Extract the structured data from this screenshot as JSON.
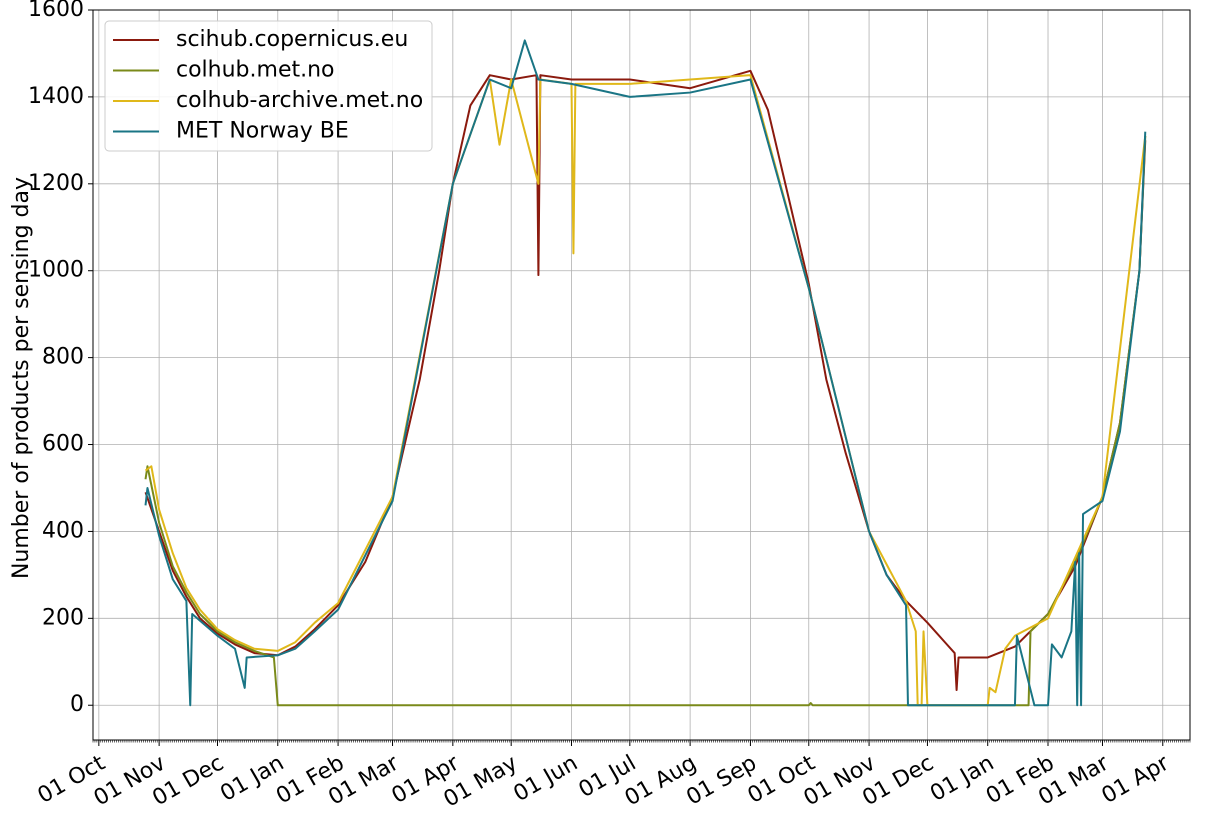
{
  "chart_data": {
    "type": "line",
    "ylabel": "Number of products per sensing day",
    "xlabel": "",
    "ylim": [
      -80,
      1600
    ],
    "yticks": [
      0,
      200,
      400,
      600,
      800,
      1000,
      1200,
      1400,
      1600
    ],
    "xlim": [
      "2020-09-28",
      "2022-04-15"
    ],
    "xticks": [
      {
        "date": "2020-10-01",
        "label": "01 Oct"
      },
      {
        "date": "2020-11-01",
        "label": "01 Nov"
      },
      {
        "date": "2020-12-01",
        "label": "01 Dec"
      },
      {
        "date": "2021-01-01",
        "label": "01 Jan"
      },
      {
        "date": "2021-02-01",
        "label": "01 Feb"
      },
      {
        "date": "2021-03-01",
        "label": "01 Mar"
      },
      {
        "date": "2021-04-01",
        "label": "01 Apr"
      },
      {
        "date": "2021-05-01",
        "label": "01 May"
      },
      {
        "date": "2021-06-01",
        "label": "01 Jun"
      },
      {
        "date": "2021-07-01",
        "label": "01 Jul"
      },
      {
        "date": "2021-08-01",
        "label": "01 Aug"
      },
      {
        "date": "2021-09-01",
        "label": "01 Sep"
      },
      {
        "date": "2021-10-01",
        "label": "01 Oct"
      },
      {
        "date": "2021-11-01",
        "label": "01 Nov"
      },
      {
        "date": "2021-12-01",
        "label": "01 Dec"
      },
      {
        "date": "2022-01-01",
        "label": "01 Jan"
      },
      {
        "date": "2022-02-01",
        "label": "01 Feb"
      },
      {
        "date": "2022-03-01",
        "label": "01 Mar"
      },
      {
        "date": "2022-04-01",
        "label": "01 Apr"
      }
    ],
    "grid": true,
    "legend_position": "top-left",
    "series": [
      {
        "name": "scihub.copernicus.eu",
        "color": "#8b1a0e",
        "points": [
          [
            "2020-10-25",
            490
          ],
          [
            "2020-11-01",
            400
          ],
          [
            "2020-11-08",
            310
          ],
          [
            "2020-11-15",
            250
          ],
          [
            "2020-11-22",
            200
          ],
          [
            "2020-12-01",
            165
          ],
          [
            "2020-12-10",
            140
          ],
          [
            "2020-12-20",
            120
          ],
          [
            "2021-01-01",
            115
          ],
          [
            "2021-01-10",
            135
          ],
          [
            "2021-01-20",
            175
          ],
          [
            "2021-02-01",
            230
          ],
          [
            "2021-02-15",
            330
          ],
          [
            "2021-03-01",
            480
          ],
          [
            "2021-03-15",
            750
          ],
          [
            "2021-03-25",
            1000
          ],
          [
            "2021-04-01",
            1200
          ],
          [
            "2021-04-10",
            1380
          ],
          [
            "2021-04-20",
            1450
          ],
          [
            "2021-05-01",
            1440
          ],
          [
            "2021-05-14",
            1450
          ],
          [
            "2021-05-15",
            990
          ],
          [
            "2021-05-16",
            1450
          ],
          [
            "2021-06-01",
            1440
          ],
          [
            "2021-07-01",
            1440
          ],
          [
            "2021-08-01",
            1420
          ],
          [
            "2021-09-01",
            1460
          ],
          [
            "2021-09-10",
            1370
          ],
          [
            "2021-09-20",
            1180
          ],
          [
            "2021-10-01",
            970
          ],
          [
            "2021-10-10",
            750
          ],
          [
            "2021-10-20",
            580
          ],
          [
            "2021-11-01",
            400
          ],
          [
            "2021-11-10",
            300
          ],
          [
            "2021-11-20",
            240
          ],
          [
            "2021-12-01",
            190
          ],
          [
            "2021-12-10",
            145
          ],
          [
            "2021-12-15",
            120
          ],
          [
            "2021-12-16",
            35
          ],
          [
            "2021-12-17",
            110
          ],
          [
            "2022-01-01",
            110
          ],
          [
            "2022-01-15",
            135
          ],
          [
            "2022-02-01",
            210
          ],
          [
            "2022-02-15",
            320
          ],
          [
            "2022-03-01",
            480
          ],
          [
            "2022-03-10",
            650
          ],
          [
            "2022-03-20",
            1000
          ],
          [
            "2022-03-23",
            1300
          ]
        ]
      },
      {
        "name": "colhub.met.no",
        "color": "#7a8a1a",
        "points": [
          [
            "2020-10-25",
            520
          ],
          [
            "2020-10-26",
            550
          ],
          [
            "2020-11-01",
            420
          ],
          [
            "2020-11-08",
            320
          ],
          [
            "2020-11-15",
            260
          ],
          [
            "2020-11-22",
            210
          ],
          [
            "2020-12-01",
            170
          ],
          [
            "2020-12-10",
            145
          ],
          [
            "2020-12-20",
            125
          ],
          [
            "2020-12-30",
            110
          ],
          [
            "2021-01-01",
            0
          ],
          [
            "2021-10-01",
            0
          ],
          [
            "2021-10-02",
            5
          ],
          [
            "2021-10-03",
            0
          ],
          [
            "2022-01-15",
            0
          ],
          [
            "2022-01-22",
            0
          ],
          [
            "2022-01-23",
            170
          ],
          [
            "2022-02-01",
            210
          ],
          [
            "2022-02-15",
            330
          ],
          [
            "2022-03-01",
            480
          ],
          [
            "2022-03-10",
            650
          ],
          [
            "2022-03-20",
            1000
          ],
          [
            "2022-03-23",
            1310
          ]
        ]
      },
      {
        "name": "colhub-archive.met.no",
        "color": "#e0b81a",
        "points": [
          [
            "2020-10-25",
            540
          ],
          [
            "2020-10-28",
            550
          ],
          [
            "2020-11-01",
            450
          ],
          [
            "2020-11-08",
            350
          ],
          [
            "2020-11-15",
            270
          ],
          [
            "2020-11-22",
            220
          ],
          [
            "2020-12-01",
            175
          ],
          [
            "2020-12-10",
            150
          ],
          [
            "2020-12-20",
            130
          ],
          [
            "2021-01-01",
            125
          ],
          [
            "2021-01-10",
            145
          ],
          [
            "2021-01-20",
            190
          ],
          [
            "2021-02-01",
            235
          ],
          [
            "2021-03-01",
            480
          ],
          [
            "2021-04-01",
            1200
          ],
          [
            "2021-04-20",
            1440
          ],
          [
            "2021-04-25",
            1290
          ],
          [
            "2021-05-01",
            1440
          ],
          [
            "2021-05-15",
            1200
          ],
          [
            "2021-05-16",
            1440
          ],
          [
            "2021-06-01",
            1430
          ],
          [
            "2021-06-02",
            1040
          ],
          [
            "2021-06-03",
            1430
          ],
          [
            "2021-07-01",
            1430
          ],
          [
            "2021-09-01",
            1450
          ],
          [
            "2021-10-01",
            960
          ],
          [
            "2021-11-01",
            400
          ],
          [
            "2021-11-20",
            240
          ],
          [
            "2021-11-25",
            170
          ],
          [
            "2021-11-26",
            0
          ],
          [
            "2021-11-28",
            0
          ],
          [
            "2021-11-29",
            170
          ],
          [
            "2021-12-01",
            0
          ],
          [
            "2022-01-01",
            0
          ],
          [
            "2022-01-02",
            40
          ],
          [
            "2022-01-05",
            30
          ],
          [
            "2022-01-10",
            130
          ],
          [
            "2022-01-15",
            160
          ],
          [
            "2022-02-01",
            200
          ],
          [
            "2022-03-01",
            480
          ],
          [
            "2022-03-23",
            1310
          ]
        ]
      },
      {
        "name": "MET Norway BE",
        "color": "#1a7585",
        "points": [
          [
            "2020-10-25",
            460
          ],
          [
            "2020-10-26",
            500
          ],
          [
            "2020-11-01",
            390
          ],
          [
            "2020-11-08",
            290
          ],
          [
            "2020-11-15",
            240
          ],
          [
            "2020-11-17",
            0
          ],
          [
            "2020-11-18",
            210
          ],
          [
            "2020-12-01",
            160
          ],
          [
            "2020-12-10",
            130
          ],
          [
            "2020-12-15",
            40
          ],
          [
            "2020-12-16",
            110
          ],
          [
            "2021-01-01",
            115
          ],
          [
            "2021-01-10",
            130
          ],
          [
            "2021-01-20",
            170
          ],
          [
            "2021-02-01",
            220
          ],
          [
            "2021-03-01",
            470
          ],
          [
            "2021-04-01",
            1200
          ],
          [
            "2021-04-20",
            1440
          ],
          [
            "2021-05-01",
            1420
          ],
          [
            "2021-05-08",
            1530
          ],
          [
            "2021-05-15",
            1440
          ],
          [
            "2021-06-01",
            1430
          ],
          [
            "2021-07-01",
            1400
          ],
          [
            "2021-08-01",
            1410
          ],
          [
            "2021-09-01",
            1440
          ],
          [
            "2021-10-01",
            960
          ],
          [
            "2021-11-01",
            400
          ],
          [
            "2021-11-10",
            300
          ],
          [
            "2021-11-20",
            230
          ],
          [
            "2021-11-21",
            0
          ],
          [
            "2022-01-15",
            0
          ],
          [
            "2022-01-16",
            160
          ],
          [
            "2022-01-25",
            0
          ],
          [
            "2022-02-01",
            0
          ],
          [
            "2022-02-03",
            140
          ],
          [
            "2022-02-08",
            110
          ],
          [
            "2022-02-13",
            170
          ],
          [
            "2022-02-15",
            330
          ],
          [
            "2022-02-16",
            0
          ],
          [
            "2022-02-17",
            350
          ],
          [
            "2022-02-18",
            0
          ],
          [
            "2022-02-19",
            440
          ],
          [
            "2022-03-01",
            470
          ],
          [
            "2022-03-10",
            630
          ],
          [
            "2022-03-20",
            1000
          ],
          [
            "2022-03-23",
            1320
          ]
        ]
      }
    ]
  }
}
